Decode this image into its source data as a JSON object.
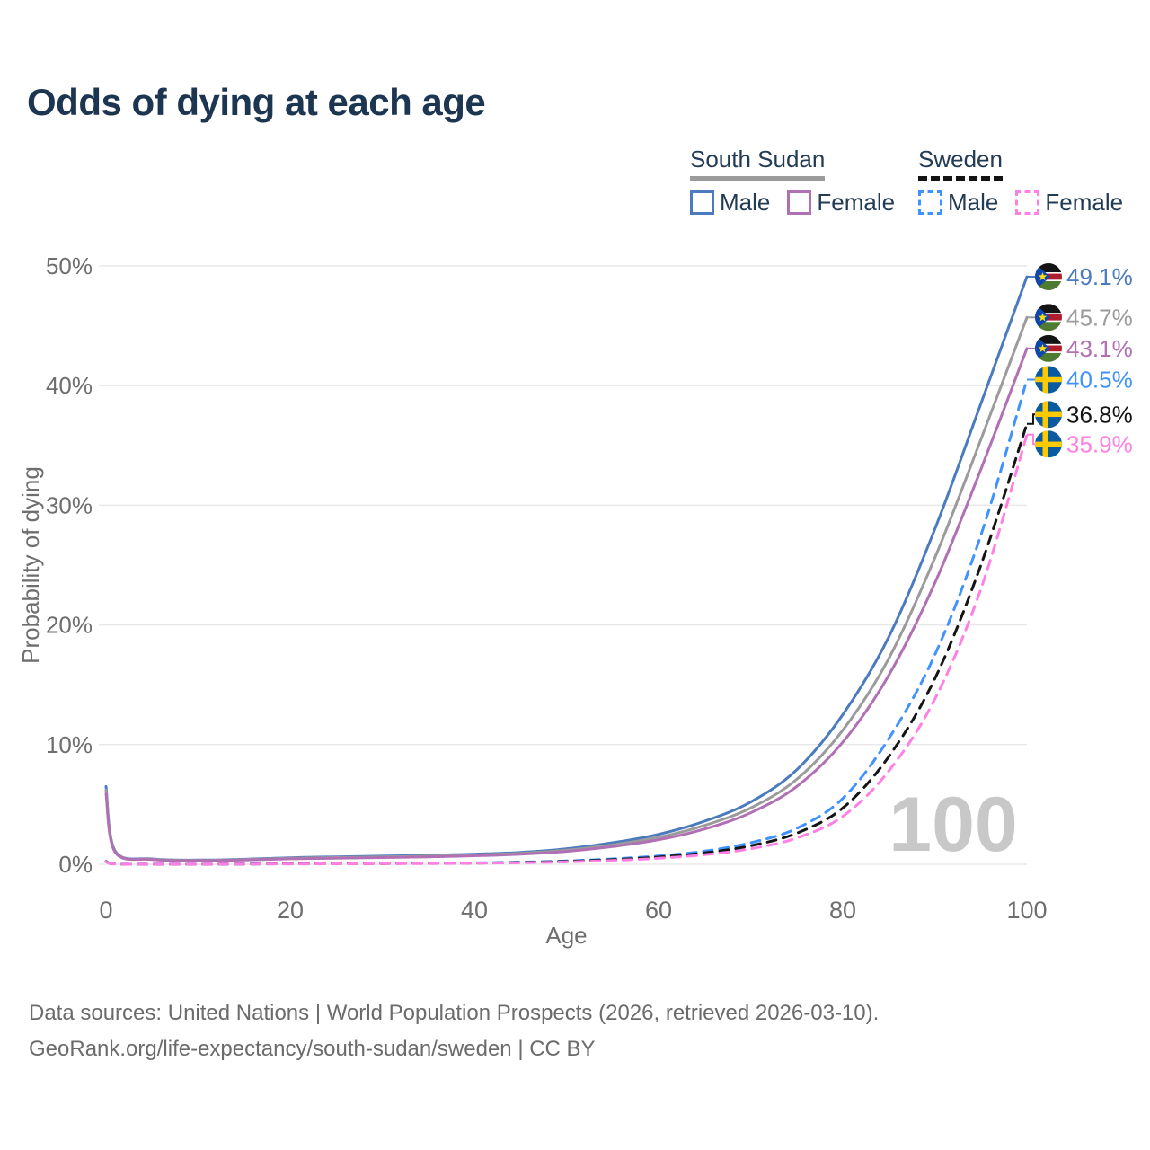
{
  "title": "Odds of dying at each age",
  "legend": {
    "groups": [
      {
        "name": "South Sudan",
        "dash": false,
        "underline_color": "#9b9b9b",
        "items": [
          {
            "label": "Male",
            "color": "#4b7bbe",
            "dash": false
          },
          {
            "label": "Female",
            "color": "#b16fb4",
            "dash": false
          }
        ]
      },
      {
        "name": "Sweden",
        "dash": true,
        "underline_color": "#141414",
        "items": [
          {
            "label": "Male",
            "color": "#3f92ff",
            "dash": true
          },
          {
            "label": "Female",
            "color": "#ff7fe3",
            "dash": true
          }
        ]
      }
    ]
  },
  "chart_data": {
    "type": "line",
    "title": "Odds of dying at each age",
    "xlabel": "Age",
    "ylabel": "Probability of dying",
    "xlim": [
      0,
      100
    ],
    "ylim": [
      0,
      50
    ],
    "x_ticks": [
      0,
      20,
      40,
      60,
      80,
      100
    ],
    "y_ticks": [
      0,
      10,
      20,
      30,
      40,
      50
    ],
    "y_tick_suffix": "%",
    "grid": "horizontal",
    "legend_position": "top-right",
    "watermark": "100",
    "x": [
      0,
      1,
      5,
      10,
      15,
      20,
      25,
      30,
      35,
      40,
      45,
      50,
      55,
      60,
      65,
      70,
      75,
      80,
      85,
      90,
      95,
      100
    ],
    "series": [
      {
        "name": "South Sudan Male",
        "country": "south-sudan",
        "sex": "male",
        "color": "#4b7bbe",
        "dashed": false,
        "end_label": "49.1%",
        "end_value": 49.1,
        "values": [
          6.5,
          1.1,
          0.45,
          0.35,
          0.42,
          0.55,
          0.62,
          0.68,
          0.75,
          0.85,
          1.0,
          1.3,
          1.8,
          2.5,
          3.6,
          5.2,
          7.9,
          12.5,
          19.0,
          28.0,
          38.5,
          49.1
        ]
      },
      {
        "name": "South Sudan Total",
        "country": "south-sudan",
        "sex": "total",
        "color": "#9b9b9b",
        "dashed": false,
        "end_label": "45.7%",
        "end_value": 45.7,
        "values": [
          6.2,
          1.05,
          0.42,
          0.33,
          0.39,
          0.5,
          0.56,
          0.62,
          0.68,
          0.78,
          0.92,
          1.18,
          1.62,
          2.25,
          3.25,
          4.7,
          7.1,
          11.2,
          17.2,
          25.6,
          35.5,
          45.7
        ]
      },
      {
        "name": "South Sudan Female",
        "country": "south-sudan",
        "sex": "female",
        "color": "#b16fb4",
        "dashed": false,
        "end_label": "43.1%",
        "end_value": 43.1,
        "values": [
          5.9,
          1.0,
          0.4,
          0.31,
          0.36,
          0.46,
          0.51,
          0.56,
          0.62,
          0.71,
          0.85,
          1.08,
          1.48,
          2.05,
          2.95,
          4.3,
          6.5,
          10.2,
          15.8,
          23.5,
          33.0,
          43.1
        ]
      },
      {
        "name": "Sweden Male",
        "country": "sweden",
        "sex": "male",
        "color": "#3f92ff",
        "dashed": true,
        "end_label": "40.5%",
        "end_value": 40.5,
        "values": [
          0.25,
          0.03,
          0.01,
          0.01,
          0.03,
          0.06,
          0.07,
          0.08,
          0.09,
          0.12,
          0.18,
          0.28,
          0.45,
          0.7,
          1.1,
          1.8,
          3.0,
          5.5,
          10.5,
          17.5,
          27.5,
          40.5
        ]
      },
      {
        "name": "Sweden Total",
        "country": "sweden",
        "sex": "total",
        "color": "#141414",
        "dashed": true,
        "end_label": "36.8%",
        "end_value": 36.8,
        "values": [
          0.22,
          0.02,
          0.01,
          0.01,
          0.02,
          0.04,
          0.05,
          0.06,
          0.08,
          0.1,
          0.15,
          0.24,
          0.38,
          0.6,
          0.95,
          1.55,
          2.6,
          4.7,
          9.0,
          15.5,
          25.0,
          36.8
        ]
      },
      {
        "name": "Sweden Female",
        "country": "sweden",
        "sex": "female",
        "color": "#ff7fe3",
        "dashed": true,
        "end_label": "35.9%",
        "end_value": 35.9,
        "values": [
          0.2,
          0.02,
          0.01,
          0.01,
          0.02,
          0.03,
          0.04,
          0.05,
          0.06,
          0.09,
          0.13,
          0.2,
          0.32,
          0.5,
          0.8,
          1.3,
          2.2,
          4.0,
          7.8,
          13.8,
          23.0,
          35.9
        ]
      }
    ]
  },
  "footer": {
    "line1": "Data sources: United Nations | World Population Prospects (2026, retrieved 2026-03-10).",
    "line2": "GeoRank.org/life-expectancy/south-sudan/sweden | CC BY"
  }
}
